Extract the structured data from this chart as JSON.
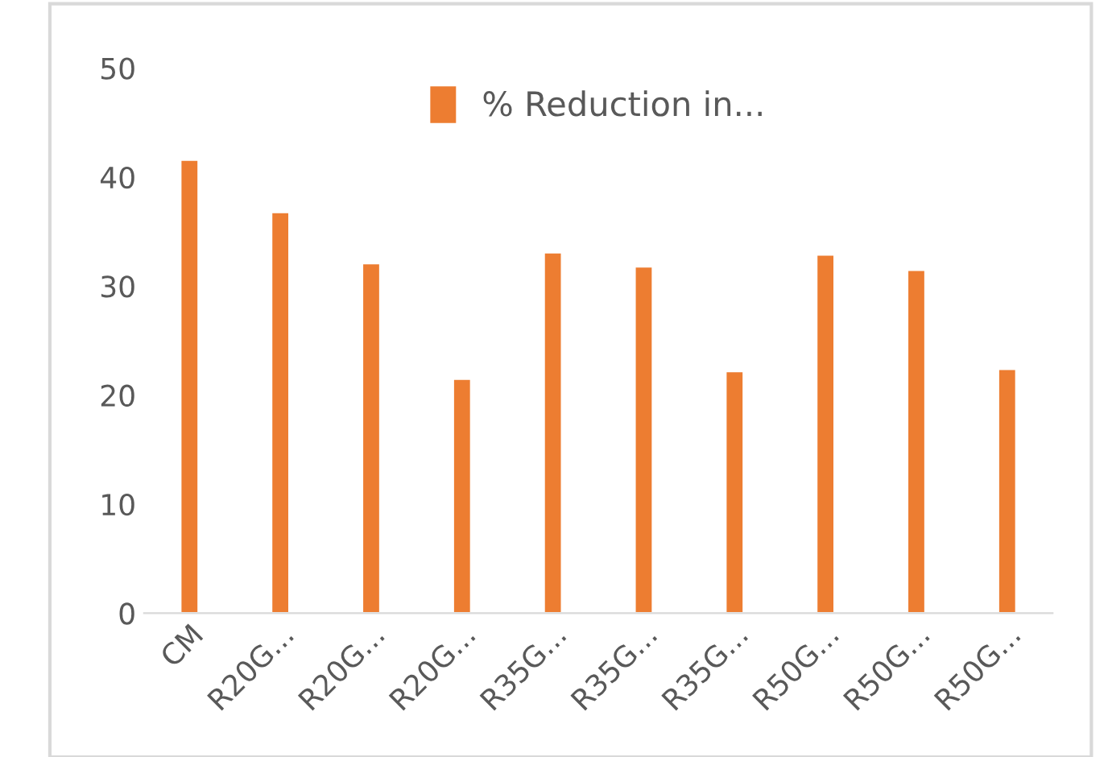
{
  "chart_data": {
    "type": "bar",
    "categories": [
      "CM",
      "R20G...",
      "R20G...",
      "R20G...",
      "R35G...",
      "R35G...",
      "R35G...",
      "R50G...",
      "R50G...",
      "R50G..."
    ],
    "series": [
      {
        "name": "% Reduction in...",
        "color": "#ed7d31",
        "values": [
          41.6,
          36.8,
          32.1,
          21.5,
          33.1,
          31.8,
          22.2,
          32.9,
          31.5,
          22.4
        ]
      }
    ],
    "ylim": [
      0,
      50
    ],
    "yticks": [
      0,
      10,
      20,
      30,
      40,
      50
    ],
    "grid": false,
    "legend": "top"
  }
}
